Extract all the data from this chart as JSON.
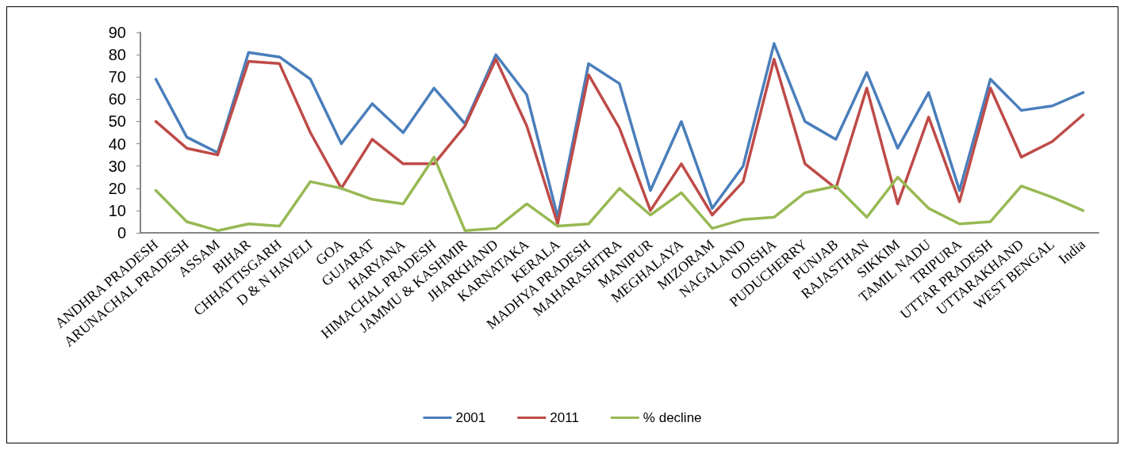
{
  "chart_data": {
    "type": "line",
    "categories": [
      "ANDHRA PRADESH",
      "ARUNACHAL PRADESH",
      "ASSAM",
      "BIHAR",
      "CHHATTISGARH",
      "D & N HAVELI",
      "GOA",
      "GUJARAT",
      "HARYANA",
      "HIMACHAL PRADESH",
      "JAMMU & KASHMIR",
      "JHARKHAND",
      "KARNATAKA",
      "KERALA",
      "MADHYA PRADESH",
      "MAHARASHTRA",
      "MANIPUR",
      "MEGHALAYA",
      "MIZORAM",
      "NAGALAND",
      "ODISHA",
      "PUDUCHERRY",
      "PUNJAB",
      "RAJASTHAN",
      "SIKKIM",
      "TAMIL NADU",
      "TRIPURA",
      "UTTAR PRADESH",
      "UTTARAKHAND",
      "WEST BENGAL",
      "India"
    ],
    "series": [
      {
        "name": "2001",
        "color": "#4a7ebb",
        "values": [
          69,
          43,
          36,
          81,
          79,
          69,
          40,
          58,
          45,
          65,
          49,
          80,
          62,
          7,
          76,
          67,
          19,
          50,
          11,
          30,
          85,
          50,
          42,
          72,
          38,
          63,
          19,
          69,
          55,
          57,
          63
        ]
      },
      {
        "name": "2011",
        "color": "#be4b48",
        "values": [
          50,
          38,
          35,
          77,
          76,
          45,
          20,
          42,
          31,
          31,
          48,
          78,
          48,
          4,
          71,
          47,
          10,
          31,
          8,
          23,
          78,
          31,
          20,
          65,
          13,
          52,
          14,
          65,
          34,
          41,
          53
        ]
      },
      {
        "name": "% decline",
        "color": "#98b954",
        "values": [
          19,
          5,
          1,
          4,
          3,
          23,
          20,
          15,
          13,
          34,
          1,
          2,
          13,
          3,
          4,
          20,
          8,
          18,
          2,
          6,
          7,
          18,
          21,
          7,
          25,
          11,
          4,
          5,
          21,
          16,
          10
        ]
      }
    ],
    "ylim": [
      0,
      90
    ],
    "yticks": [
      0,
      10,
      20,
      30,
      40,
      50,
      60,
      70,
      80,
      90
    ],
    "grid": false,
    "legend": "bottom",
    "marker": "none",
    "line_style": "solid"
  }
}
